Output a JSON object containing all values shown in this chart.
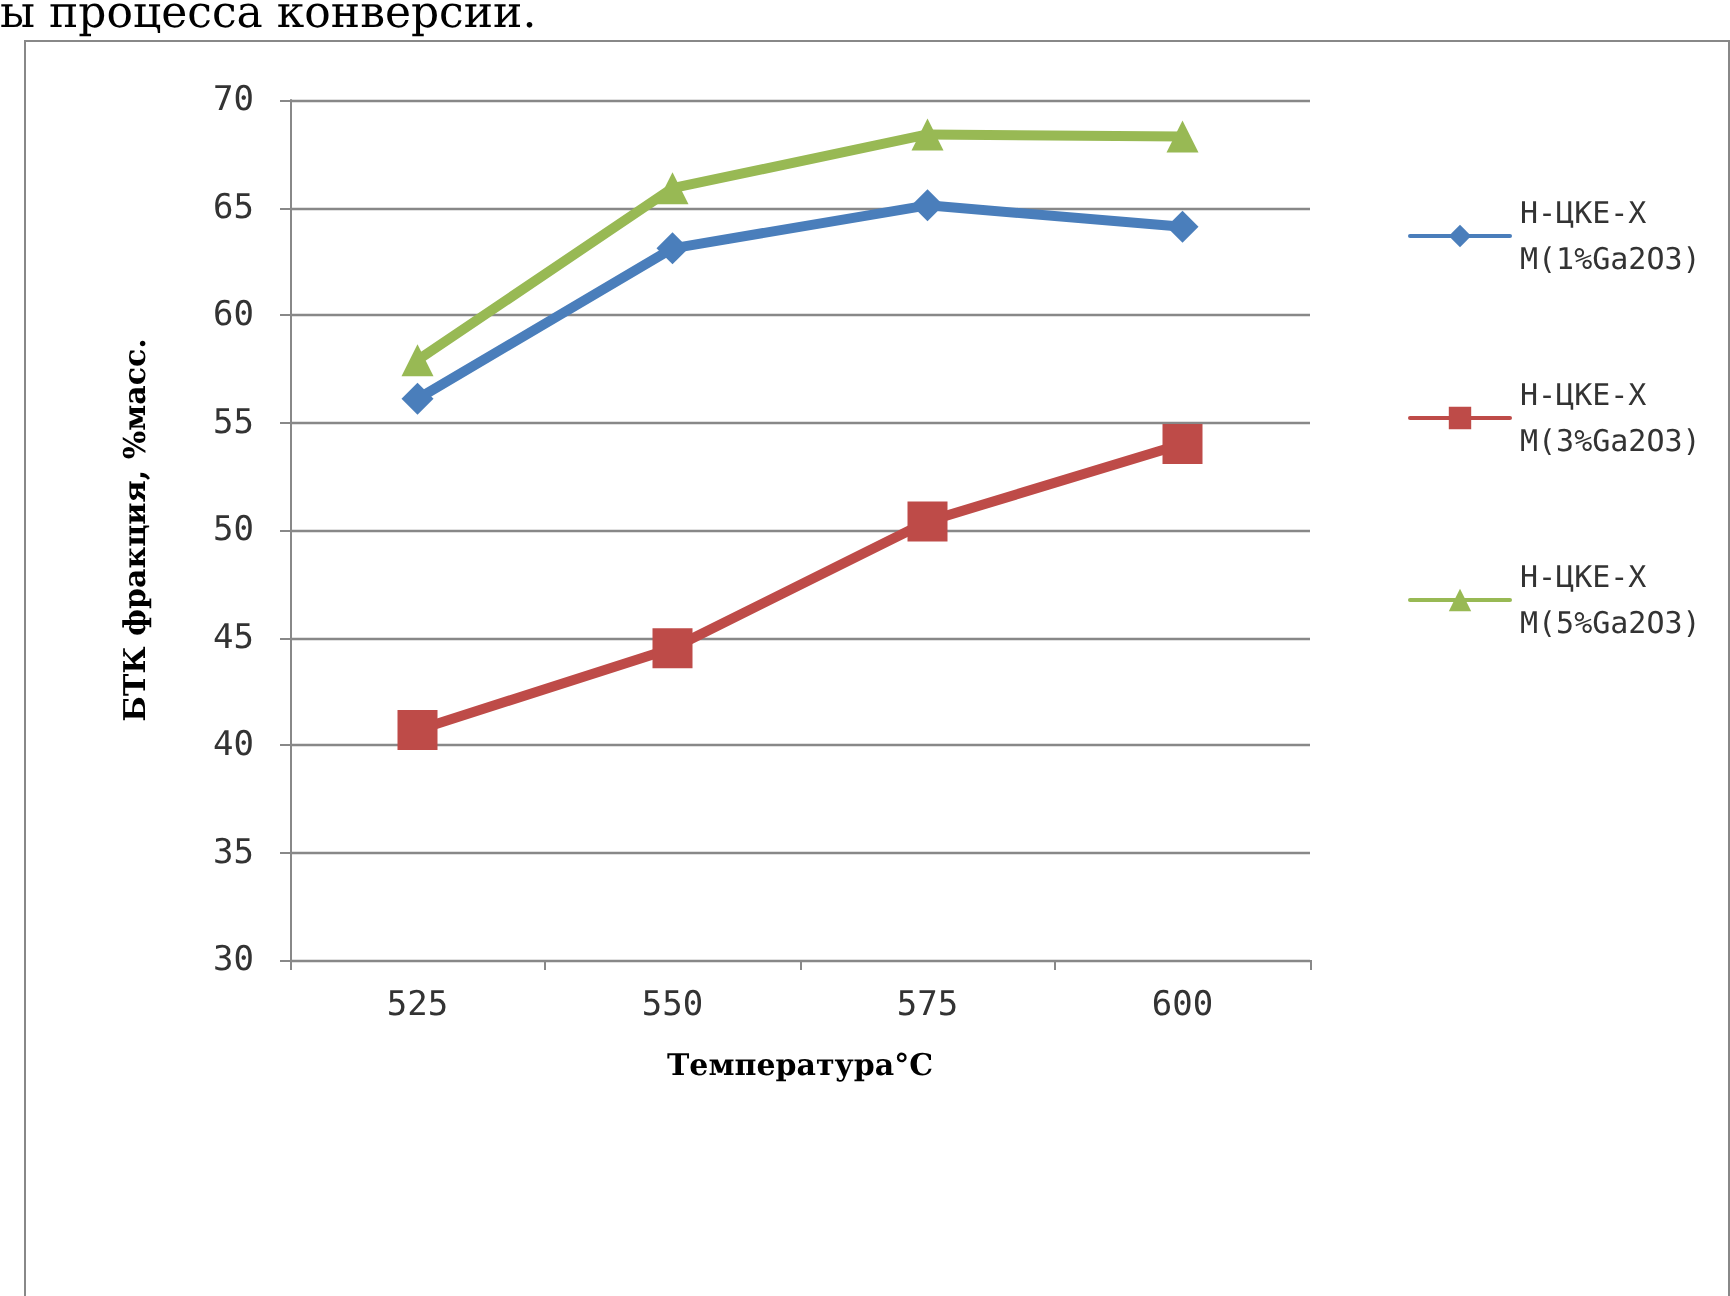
{
  "chart_data": {
    "type": "line",
    "xlabel": "Температура°С",
    "ylabel": "БТК фракция, %масс.",
    "annotations": [
      "ы процесса конверсии."
    ],
    "categories": [
      "525",
      "550",
      "575",
      "600"
    ],
    "series": [
      {
        "name": "Н-ЦКЕ-ХМ(1%Ga2O3)",
        "color": "#4a7ebb",
        "marker": "diamond",
        "values": [
          56.1,
          63.1,
          65.1,
          64.1
        ]
      },
      {
        "name": "Н-ЦКЕ-ХМ(3%Ga2O3)",
        "color": "#be4b48",
        "marker": "square",
        "values": [
          40.7,
          44.5,
          50.4,
          54
        ]
      },
      {
        "name": "Н-ЦКЕ-ХМ(5%Ga2O3)",
        "color": "#98b954",
        "marker": "triangle",
        "values": [
          57.9,
          65.9,
          68.4,
          68.3
        ]
      }
    ],
    "ylim": [
      30,
      70
    ],
    "yticks": [
      30,
      35,
      40,
      45,
      50,
      55,
      60,
      65,
      70
    ],
    "grid": "y",
    "legend": "right",
    "line_style": "solid"
  }
}
